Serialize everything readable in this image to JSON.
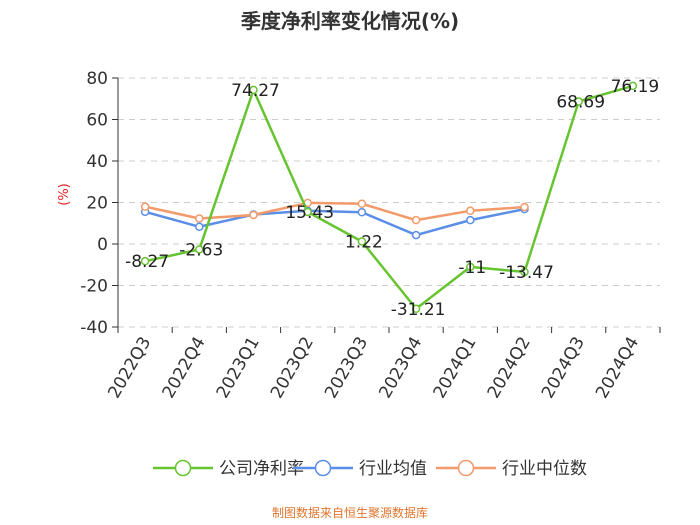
{
  "chart_data": {
    "type": "line",
    "title": "季度净利率变化情况(%)",
    "ylabel": "(%)",
    "ylim": [
      -40,
      80
    ],
    "yticks": [
      -40,
      -20,
      0,
      20,
      40,
      60,
      80
    ],
    "grid": true,
    "legend_position": "bottom",
    "categories": [
      "2022Q3",
      "2022Q4",
      "2023Q1",
      "2023Q2",
      "2023Q3",
      "2023Q4",
      "2024Q1",
      "2024Q2",
      "2024Q3",
      "2024Q4"
    ],
    "series": [
      {
        "name": "公司净利率",
        "color": "#66c431",
        "values": [
          -8.27,
          -2.63,
          74.27,
          15.43,
          1.22,
          -31.21,
          -11,
          -13.47,
          68.69,
          76.19
        ],
        "labels": [
          "-8.27",
          "-2.63",
          "74.27",
          "15.43",
          "1.22",
          "-31.21",
          "-11",
          "-13.47",
          "68.69",
          "76.19"
        ]
      },
      {
        "name": "行业均值",
        "color": "#5b8ee6",
        "values": [
          15.5,
          8.3,
          14.2,
          16.0,
          15.3,
          4.3,
          11.5,
          16.8,
          null,
          null
        ]
      },
      {
        "name": "行业中位数",
        "color": "#f39a6b",
        "values": [
          18.0,
          12.3,
          14.0,
          19.8,
          19.4,
          11.5,
          16.0,
          17.8,
          null,
          null
        ]
      }
    ]
  },
  "footer": {
    "source": "制图数据来自恒生聚源数据库",
    "color": "#e0752e"
  },
  "colors": {
    "ylabel": "#e02020",
    "grid": "#cccccc",
    "axis": "#333333"
  }
}
